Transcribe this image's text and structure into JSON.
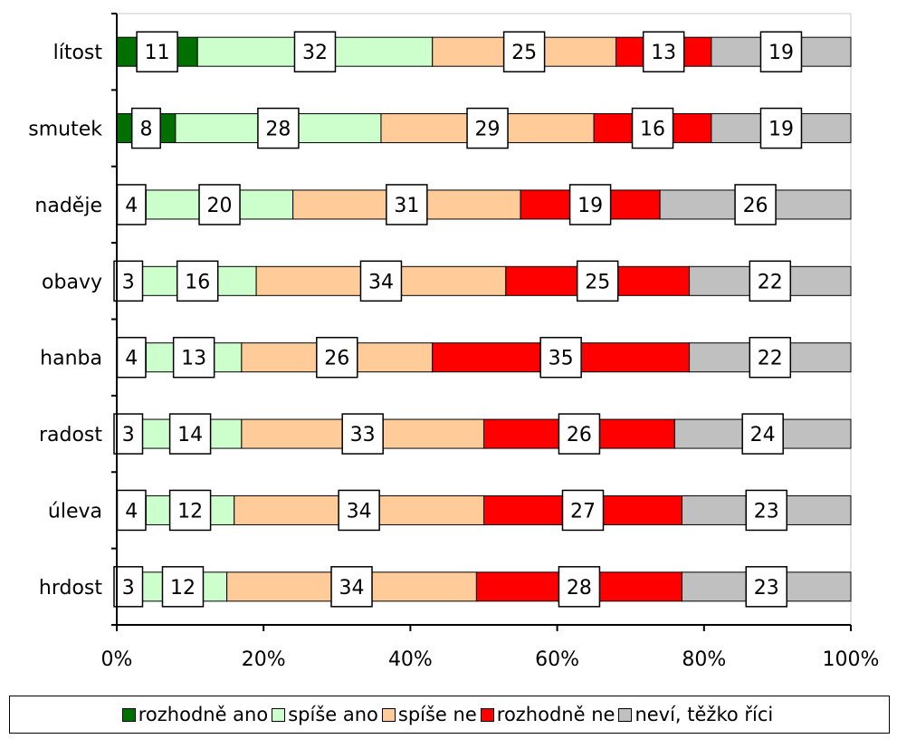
{
  "chart_data": {
    "type": "bar",
    "orientation": "horizontal",
    "stacked": "percent",
    "categories": [
      "lítost",
      "smutek",
      "naděje",
      "obavy",
      "hanba",
      "radost",
      "úleva",
      "hrdost"
    ],
    "series": [
      {
        "name": "rozhodně ano",
        "color": "#007000",
        "values": [
          11,
          8,
          4,
          3,
          4,
          3,
          4,
          3
        ]
      },
      {
        "name": "spíše ano",
        "color": "#ccffcc",
        "values": [
          32,
          28,
          20,
          16,
          13,
          14,
          12,
          12
        ]
      },
      {
        "name": "spíše ne",
        "color": "#ffcc99",
        "values": [
          25,
          29,
          31,
          34,
          26,
          33,
          34,
          34
        ]
      },
      {
        "name": "rozhodně ne",
        "color": "#ff0000",
        "values": [
          13,
          16,
          19,
          25,
          35,
          26,
          27,
          28
        ]
      },
      {
        "name": "neví, těžko říci",
        "color": "#c0c0c0",
        "values": [
          19,
          19,
          26,
          22,
          22,
          24,
          23,
          23
        ]
      }
    ],
    "x_ticks": [
      "0%",
      "20%",
      "40%",
      "60%",
      "80%",
      "100%"
    ],
    "xlim": [
      0,
      100
    ],
    "grid": false,
    "legend": "bottom"
  }
}
